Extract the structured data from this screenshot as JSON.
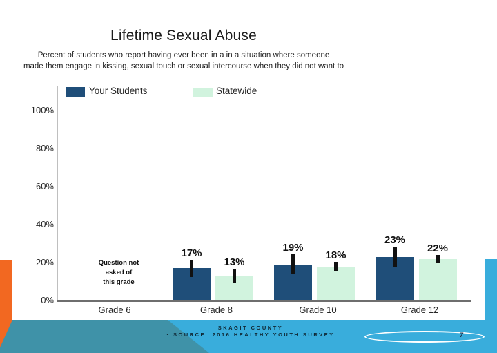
{
  "slide": {
    "title": "Lifetime Sexual Abuse",
    "subtitle_line1": "Percent of students who report having ever been in a in a situation where someone",
    "subtitle_line2": "made them engage in kissing, sexual touch or sexual intercourse when they did not want to"
  },
  "chart_data": {
    "type": "bar",
    "categories": [
      "Grade 6",
      "Grade 8",
      "Grade 10",
      "Grade 12"
    ],
    "series": [
      {
        "name": "Your Students",
        "color": "#1F4E79",
        "values": [
          null,
          17,
          19,
          23
        ],
        "value_labels": [
          "",
          "17%",
          "19%",
          "23%"
        ],
        "moe_pct_points": [
          null,
          4.5,
          5.2,
          5.3
        ]
      },
      {
        "name": "Statewide",
        "color": "#D1F3DE",
        "values": [
          null,
          13,
          18,
          22
        ],
        "value_labels": [
          "",
          "13%",
          "18%",
          "22%"
        ],
        "moe_pct_points": [
          null,
          3.6,
          2.4,
          2.0
        ]
      }
    ],
    "ylim": [
      0,
      100
    ],
    "ytick_labels": [
      "0%",
      "20%",
      "40%",
      "60%",
      "80%",
      "100%"
    ],
    "grid": true,
    "legend_position": "top-left",
    "error_bars": true,
    "grade6_note_lines": [
      "Question not",
      "asked of",
      "this grade"
    ]
  },
  "footer": {
    "line1": "SKAGIT COUNTY",
    "line2": "· SOURCE: 2016 HEALTHY YOUTH SURVEY",
    "page_number": "7"
  },
  "colors": {
    "your_students": "#1F4E79",
    "statewide": "#D1F3DE",
    "footer_light_blue": "#39ADDC",
    "footer_teal": "#3F92A8",
    "accent_orange": "#F26821",
    "error_bar": "#111111"
  }
}
